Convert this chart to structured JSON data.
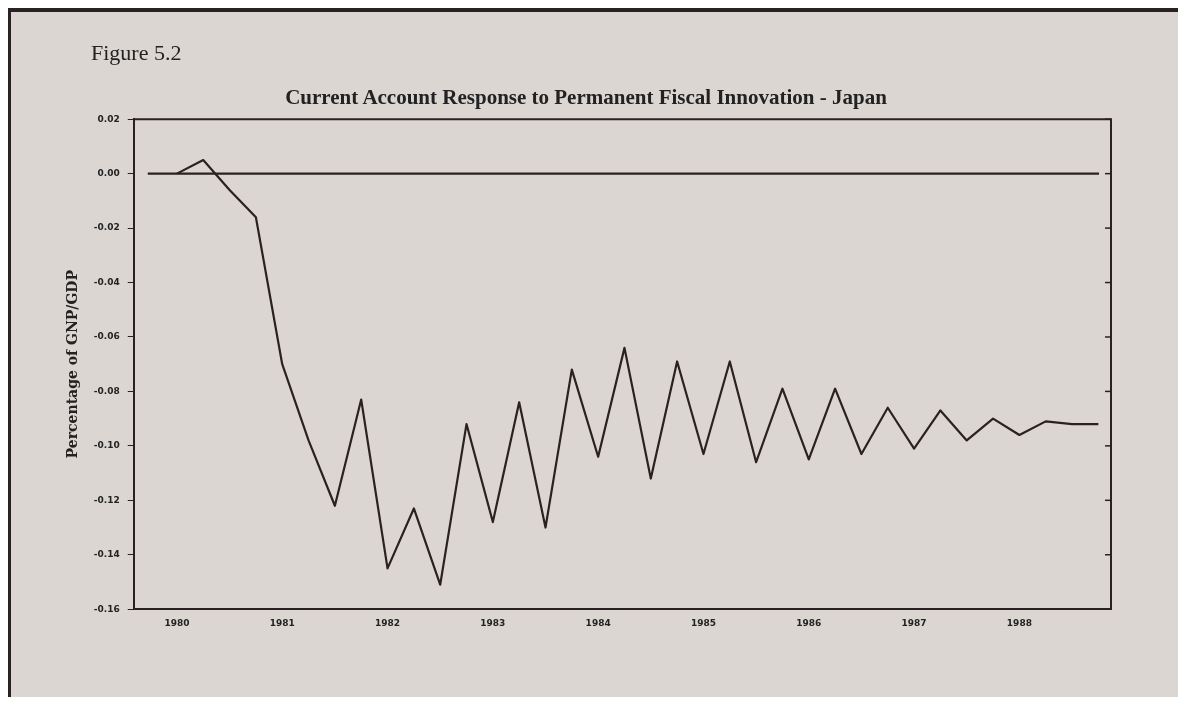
{
  "chart_data": {
    "type": "line",
    "title": "Current Account Response to Permanent Fiscal Innovation - Japan",
    "ylabel": "Percentage of GNP/GDP",
    "annotations": [
      "Figure 5.2"
    ],
    "x": [
      1980,
      1980.25,
      1980.5,
      1980.75,
      1981,
      1981.25,
      1981.5,
      1981.75,
      1982,
      1982.25,
      1982.5,
      1982.75,
      1983,
      1983.25,
      1983.5,
      1983.75,
      1984,
      1984.25,
      1984.5,
      1984.75,
      1985,
      1985.25,
      1985.5,
      1985.75,
      1986,
      1986.25,
      1986.5,
      1986.75,
      1987,
      1987.25,
      1987.5,
      1987.75,
      1988,
      1988.25,
      1988.5,
      1988.75
    ],
    "series": [
      {
        "color": "#2a2222",
        "values": [
          0,
          0.005,
          -0.006,
          -0.016,
          -0.07,
          -0.098,
          -0.122,
          -0.083,
          -0.145,
          -0.123,
          -0.151,
          -0.092,
          -0.128,
          -0.084,
          -0.13,
          -0.072,
          -0.104,
          -0.064,
          -0.112,
          -0.069,
          -0.103,
          -0.069,
          -0.106,
          -0.079,
          -0.105,
          -0.079,
          -0.103,
          -0.086,
          -0.101,
          -0.087,
          -0.098,
          -0.09,
          -0.096,
          -0.091,
          -0.092,
          -0.092
        ]
      }
    ],
    "xlim": [
      1979.59,
      1988.87
    ],
    "xticks": [
      1980,
      1981,
      1982,
      1983,
      1984,
      1985,
      1986,
      1987,
      1988
    ],
    "ylim": [
      -0.16,
      0.02
    ],
    "yticks": [
      {
        "value": 0.02,
        "label": "0.02"
      },
      {
        "value": 0,
        "label": "0.00"
      },
      {
        "value": -0.02,
        "label": "-0.02"
      },
      {
        "value": -0.04,
        "label": "-0.04"
      },
      {
        "value": -0.06,
        "label": "-0.06"
      },
      {
        "value": -0.08,
        "label": "-0.08"
      },
      {
        "value": -0.1,
        "label": "-0.10"
      },
      {
        "value": -0.12,
        "label": "-0.12"
      },
      {
        "value": -0.14,
        "label": "-0.14"
      },
      {
        "value": -0.16,
        "label": "-0.16"
      }
    ],
    "ref_lines": [
      {
        "axis": "y",
        "value": 0,
        "color": "#2a2222"
      }
    ],
    "grid": false,
    "legend": false,
    "marker": "none",
    "line_style": "solid"
  }
}
